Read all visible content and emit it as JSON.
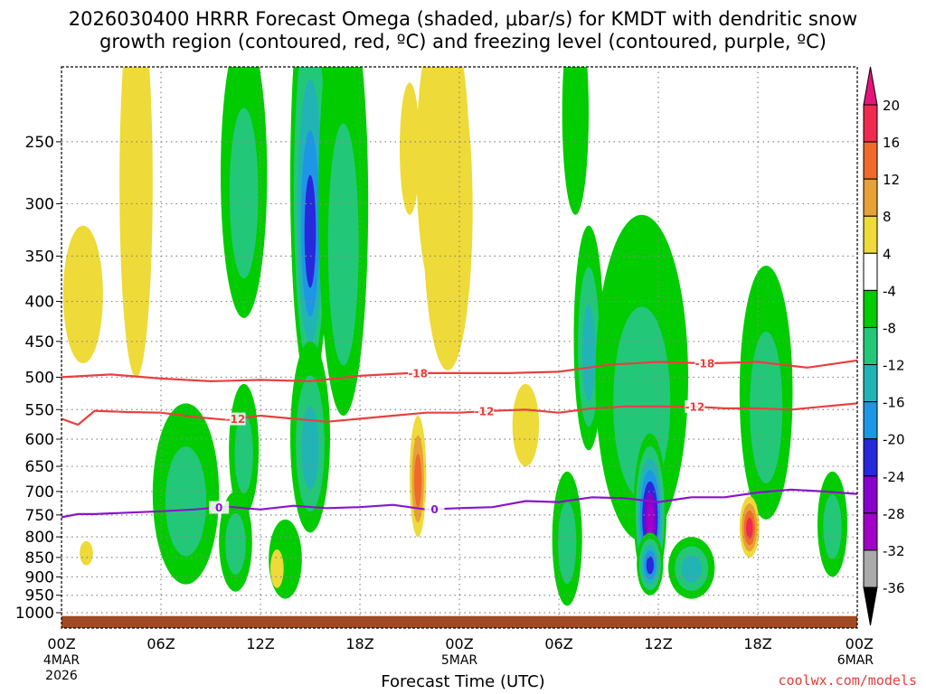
{
  "title": {
    "line1": "2026030400 HRRR Forecast Omega (shaded, μbar/s) for KMDT with dendritic snow",
    "line2": "growth region (contoured, red, ºC) and freezing level (contoured, purple, ºC)"
  },
  "credit": "coolwx.com/models",
  "chart_data": {
    "type": "heatmap",
    "title": "2026030400 HRRR Forecast Omega (shaded, μbar/s) for KMDT with dendritic snow growth region (contoured, red, ºC) and freezing level (contoured, purple, ºC)",
    "xlabel": "Forecast Time (UTC)",
    "ylabel": "",
    "x_range_hours": [
      0,
      48
    ],
    "y_range_hpa": [
      200,
      1030
    ],
    "y_scale": "log-pressure",
    "grid": true,
    "x_ticks": [
      {
        "hour": 0,
        "label": "00Z",
        "sub1": "4MAR",
        "sub2": "2026"
      },
      {
        "hour": 6,
        "label": "06Z",
        "sub1": "",
        "sub2": ""
      },
      {
        "hour": 12,
        "label": "12Z",
        "sub1": "",
        "sub2": ""
      },
      {
        "hour": 18,
        "label": "18Z",
        "sub1": "",
        "sub2": ""
      },
      {
        "hour": 24,
        "label": "00Z",
        "sub1": "5MAR",
        "sub2": ""
      },
      {
        "hour": 30,
        "label": "06Z",
        "sub1": "",
        "sub2": ""
      },
      {
        "hour": 36,
        "label": "12Z",
        "sub1": "",
        "sub2": ""
      },
      {
        "hour": 42,
        "label": "18Z",
        "sub1": "",
        "sub2": ""
      },
      {
        "hour": 48,
        "label": "00Z",
        "sub1": "6MAR",
        "sub2": ""
      }
    ],
    "y_ticks": [
      250,
      300,
      350,
      400,
      450,
      500,
      550,
      600,
      650,
      700,
      750,
      800,
      850,
      900,
      950,
      1000
    ],
    "colorbar": {
      "labels": [
        20,
        16,
        12,
        8,
        4,
        -4,
        -8,
        -12,
        -16,
        -20,
        -24,
        -28,
        -32,
        -36
      ],
      "bounds": [
        20,
        16,
        12,
        8,
        4,
        -4,
        -8,
        -12,
        -16,
        -20,
        -24,
        -28,
        -32,
        -36
      ],
      "colors": [
        "#f02a4e",
        "#f06a2a",
        "#e8a038",
        "#eeda38",
        "#ffffff",
        "#00cc00",
        "#22c878",
        "#22b4b4",
        "#1e96e6",
        "#2828dc",
        "#8800cc",
        "#a000c8",
        "#aaaaaa"
      ],
      "top_color": "#e6147a",
      "bottom_color": "#000000"
    },
    "contours": {
      "dgz_minus18": {
        "label": "-18",
        "color": "#e84040",
        "hours": [
          0,
          3,
          6,
          9,
          12,
          15,
          18,
          21,
          24,
          27,
          30,
          33,
          36,
          39,
          42,
          45,
          48
        ],
        "hpa": [
          500,
          496,
          502,
          506,
          504,
          506,
          498,
          494,
          494,
          494,
          492,
          482,
          478,
          480,
          478,
          486,
          476
        ]
      },
      "dgz_minus12": {
        "label": "-12",
        "color": "#e84040",
        "hours": [
          0,
          1,
          2,
          4,
          6,
          8,
          10,
          12,
          14,
          16,
          18,
          20,
          22,
          24,
          26,
          28,
          30,
          32,
          34,
          36,
          38,
          40,
          42,
          44,
          46,
          48
        ],
        "hpa": [
          565,
          575,
          552,
          554,
          555,
          562,
          567,
          560,
          565,
          570,
          565,
          560,
          555,
          555,
          552,
          550,
          555,
          548,
          545,
          545,
          545,
          548,
          548,
          550,
          545,
          540
        ]
      },
      "freezing_0": {
        "label": "0",
        "color": "#8a14c8",
        "hours": [
          0,
          1,
          2,
          4,
          6,
          8,
          10,
          12,
          14,
          16,
          18,
          20,
          22,
          24,
          26,
          28,
          30,
          32,
          34,
          36,
          38,
          40,
          42,
          44,
          46,
          48
        ],
        "hpa": [
          755,
          748,
          748,
          745,
          742,
          738,
          732,
          738,
          730,
          735,
          733,
          728,
          738,
          735,
          733,
          720,
          722,
          712,
          714,
          722,
          712,
          712,
          702,
          696,
          700,
          705
        ]
      },
      "label_positions": {
        "dgz_minus18": [
          21.5,
          38.8
        ],
        "dgz_minus12": [
          10.5,
          25.5,
          38.2
        ],
        "freezing_0": [
          9.5,
          22.5
        ]
      }
    },
    "omega_features": [
      {
        "hour": 15.0,
        "hpa": 330,
        "dh": 1.2,
        "dp": 190,
        "value": -22
      },
      {
        "hour": 11.0,
        "hpa": 300,
        "dh": 1.4,
        "dp": 120,
        "value": -10
      },
      {
        "hour": 17.0,
        "hpa": 360,
        "dh": 1.5,
        "dp": 200,
        "value": -9
      },
      {
        "hour": 11.0,
        "hpa": 630,
        "dh": 0.9,
        "dp": 120,
        "value": -10
      },
      {
        "hour": 15.0,
        "hpa": 620,
        "dh": 1.2,
        "dp": 170,
        "value": -12
      },
      {
        "hour": 7.5,
        "hpa": 730,
        "dh": 2.0,
        "dp": 190,
        "value": -9
      },
      {
        "hour": 10.5,
        "hpa": 820,
        "dh": 1.0,
        "dp": 120,
        "value": -8
      },
      {
        "hour": 13.5,
        "hpa": 860,
        "dh": 1.0,
        "dp": 100,
        "value": -6
      },
      {
        "hour": 31.8,
        "hpa": 470,
        "dh": 0.9,
        "dp": 150,
        "value": -12
      },
      {
        "hour": 35.0,
        "hpa": 560,
        "dh": 2.8,
        "dp": 250,
        "value": -10
      },
      {
        "hour": 35.5,
        "hpa": 760,
        "dh": 1.0,
        "dp": 170,
        "value": -28
      },
      {
        "hour": 35.5,
        "hpa": 870,
        "dh": 0.8,
        "dp": 80,
        "value": -22
      },
      {
        "hour": 38.0,
        "hpa": 880,
        "dh": 1.4,
        "dp": 80,
        "value": -14
      },
      {
        "hour": 42.5,
        "hpa": 560,
        "dh": 1.6,
        "dp": 200,
        "value": -9
      },
      {
        "hour": 30.5,
        "hpa": 820,
        "dh": 0.9,
        "dp": 160,
        "value": -8
      },
      {
        "hour": 46.5,
        "hpa": 780,
        "dh": 0.9,
        "dp": 120,
        "value": -8
      },
      {
        "hour": 31.0,
        "hpa": 240,
        "dh": 0.8,
        "dp": 70,
        "value": -6
      },
      {
        "hour": 4.5,
        "hpa": 330,
        "dh": 1.0,
        "dp": 170,
        "value": 6
      },
      {
        "hour": 1.3,
        "hpa": 400,
        "dh": 1.2,
        "dp": 80,
        "value": 5
      },
      {
        "hour": 23.0,
        "hpa": 290,
        "dh": 1.6,
        "dp": 120,
        "value": 10
      },
      {
        "hour": 23.3,
        "hpa": 340,
        "dh": 1.5,
        "dp": 150,
        "value": 6
      },
      {
        "hour": 21.0,
        "hpa": 260,
        "dh": 0.6,
        "dp": 50,
        "value": 6
      },
      {
        "hour": 21.5,
        "hpa": 680,
        "dh": 0.5,
        "dp": 120,
        "value": 12
      },
      {
        "hour": 28.0,
        "hpa": 580,
        "dh": 0.8,
        "dp": 70,
        "value": 5
      },
      {
        "hour": 41.5,
        "hpa": 780,
        "dh": 0.6,
        "dp": 70,
        "value": 20
      },
      {
        "hour": 13.0,
        "hpa": 880,
        "dh": 0.4,
        "dp": 50,
        "value": 6
      },
      {
        "hour": 1.5,
        "hpa": 840,
        "dh": 0.4,
        "dp": 30,
        "value": 5
      }
    ]
  },
  "colors": {
    "ground": "#a04a24",
    "grid": "#888888"
  }
}
